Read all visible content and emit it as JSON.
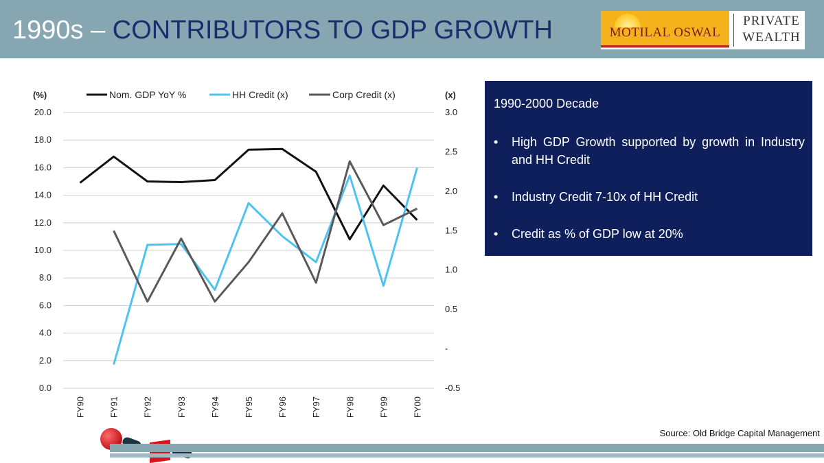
{
  "header": {
    "title_prefix": "1990s –",
    "title_main": "CONTRIBUTORS TO GDP GROWTH"
  },
  "logo": {
    "brand": "MOTILAL OSWAL",
    "sub_line1": "PRIVATE",
    "sub_line2": "WEALTH"
  },
  "chart_data": {
    "type": "line",
    "categories": [
      "FY90",
      "FY91",
      "FY92",
      "FY93",
      "FY94",
      "FY95",
      "FY96",
      "FY97",
      "FY98",
      "FY99",
      "FY00"
    ],
    "left_axis": {
      "label": "(%)",
      "min": 0,
      "max": 20,
      "ticks": [
        "0.0",
        "2.0",
        "4.0",
        "6.0",
        "8.0",
        "10.0",
        "12.0",
        "14.0",
        "16.0",
        "18.0",
        "20.0"
      ]
    },
    "right_axis": {
      "label": "(x)",
      "min": -0.5,
      "max": 3.0,
      "ticks": [
        "-0.5",
        "-",
        "0.5",
        "1.0",
        "1.5",
        "2.0",
        "2.5",
        "3.0"
      ]
    },
    "grid": true,
    "legend_placement": "top",
    "series": [
      {
        "name": "Nom. GDP YoY %",
        "axis": "left",
        "color": "#111111",
        "values": [
          14.9,
          16.8,
          15.0,
          14.95,
          15.1,
          17.3,
          17.35,
          15.7,
          10.8,
          14.7,
          12.2
        ]
      },
      {
        "name": "HH Credit (x)",
        "axis": "right",
        "color": "#4fc3f0",
        "values": [
          null,
          -0.2,
          1.32,
          1.33,
          0.75,
          1.85,
          1.43,
          1.1,
          2.2,
          0.8,
          2.3
        ]
      },
      {
        "name": "Corp Credit (x)",
        "axis": "right",
        "color": "#595959",
        "values": [
          null,
          1.5,
          0.6,
          1.4,
          0.6,
          1.1,
          1.72,
          0.84,
          2.38,
          1.57,
          1.78
        ]
      }
    ]
  },
  "panel": {
    "title": "1990-2000 Decade",
    "bullet_char": "•",
    "bullets": [
      "High GDP Growth supported by growth in Industry and HH Credit",
      "Industry Credit 7-10x of HH Credit",
      "Credit as % of GDP low at 20%"
    ]
  },
  "source": "Source: Old Bridge Capital Management"
}
